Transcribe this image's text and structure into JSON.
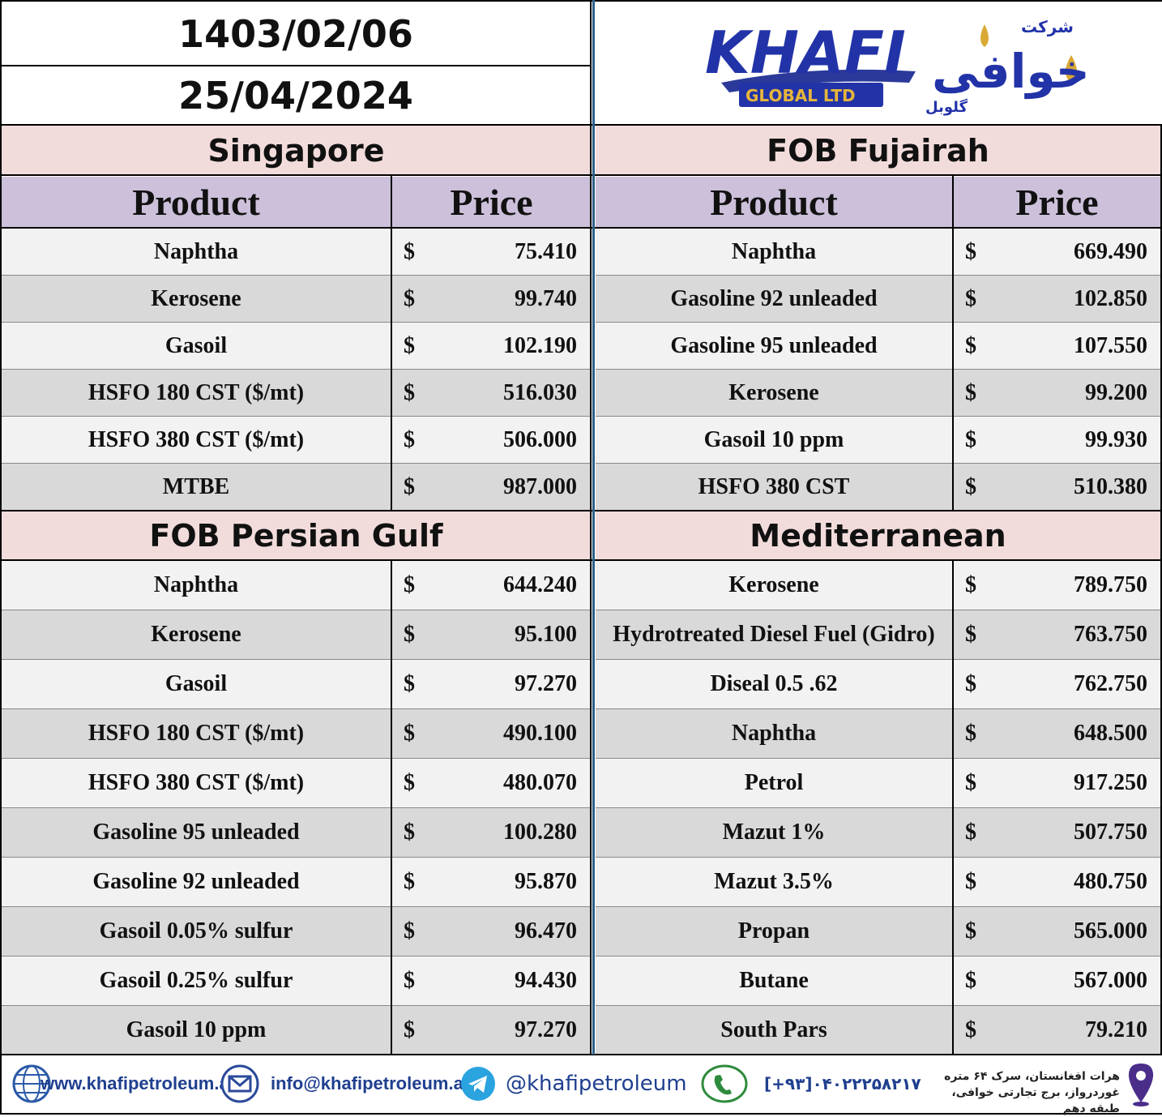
{
  "header": {
    "date_persian": "1403/02/06",
    "date_gregorian": "25/04/2024",
    "logo_text": "KHAFI",
    "logo_sub": "GLOBAL LTD",
    "logo_persian_top": "شرکت",
    "logo_persian_main": "خوافی",
    "logo_persian_bottom": "گلوبل"
  },
  "columns": {
    "product": "Product",
    "price": "Price"
  },
  "currency": "$",
  "singapore": {
    "title": "Singapore",
    "rows": [
      {
        "product": "Naphtha",
        "price": "75.410"
      },
      {
        "product": "Kerosene",
        "price": "99.740"
      },
      {
        "product": "Gasoil",
        "price": "102.190"
      },
      {
        "product": "HSFO 180 CST ($/mt)",
        "price": "516.030"
      },
      {
        "product": "HSFO 380 CST ($/mt)",
        "price": "506.000"
      },
      {
        "product": "MTBE",
        "price": "987.000"
      }
    ]
  },
  "fujairah": {
    "title": "FOB Fujairah",
    "rows": [
      {
        "product": "Naphtha",
        "price": "669.490"
      },
      {
        "product": "Gasoline 92 unleaded",
        "price": "102.850"
      },
      {
        "product": "Gasoline 95 unleaded",
        "price": "107.550"
      },
      {
        "product": "Kerosene",
        "price": "99.200"
      },
      {
        "product": "Gasoil 10 ppm",
        "price": "99.930"
      },
      {
        "product": "HSFO 380 CST",
        "price": "510.380"
      }
    ]
  },
  "persian_gulf": {
    "title": "FOB Persian Gulf",
    "rows": [
      {
        "product": "Naphtha",
        "price": "644.240"
      },
      {
        "product": "Kerosene",
        "price": "95.100"
      },
      {
        "product": "Gasoil",
        "price": "97.270"
      },
      {
        "product": "HSFO 180 CST ($/mt)",
        "price": "490.100"
      },
      {
        "product": "HSFO 380 CST ($/mt)",
        "price": "480.070"
      },
      {
        "product": "Gasoline 95 unleaded",
        "price": "100.280"
      },
      {
        "product": "Gasoline 92 unleaded",
        "price": "95.870"
      },
      {
        "product": "Gasoil 0.05% sulfur",
        "price": "96.470"
      },
      {
        "product": "Gasoil 0.25% sulfur",
        "price": "94.430"
      },
      {
        "product": "Gasoil 10 ppm",
        "price": "97.270"
      }
    ]
  },
  "mediterranean": {
    "title": "Mediterranean",
    "rows": [
      {
        "product": "Kerosene",
        "price": "789.750"
      },
      {
        "product": "Hydrotreated Diesel Fuel (Gidro)",
        "price": "763.750"
      },
      {
        "product": "Diseal 0.5 .62",
        "price": "762.750"
      },
      {
        "product": "Naphtha",
        "price": "648.500"
      },
      {
        "product": "Petrol",
        "price": "917.250"
      },
      {
        "product": "Mazut 1%",
        "price": "507.750"
      },
      {
        "product": "Mazut 3.5%",
        "price": "480.750"
      },
      {
        "product": "Propan",
        "price": "565.000"
      },
      {
        "product": "Butane",
        "price": "567.000"
      },
      {
        "product": "South Pars",
        "price": "79.210"
      }
    ]
  },
  "footer": {
    "website": "www.khafipetroleum.af",
    "email": "info@khafipetroleum.af",
    "telegram": "@khafipetroleum",
    "phone": "[+۹۳]۰۴۰۲۲۲۵۸۲۱۷",
    "address_line1": "هرات افغانستان، سرک ۶۴ متره",
    "address_line2": "غوردرواز، برج تجارتی خوافی، طبقه دهم"
  }
}
